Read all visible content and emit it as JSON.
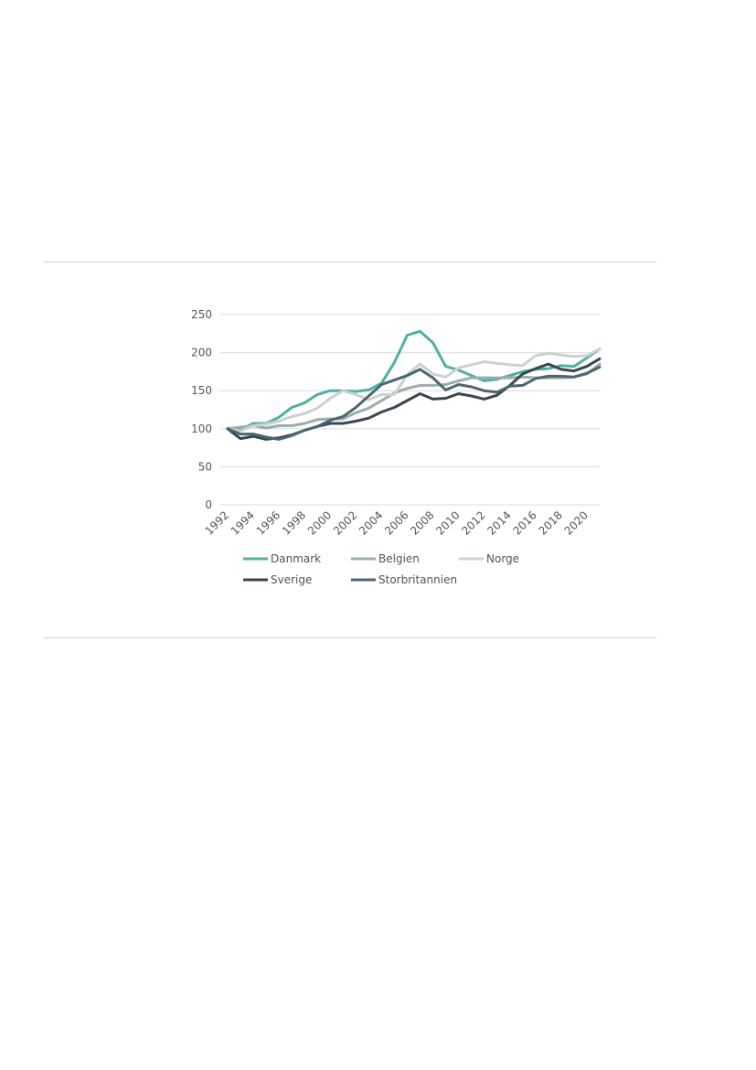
{
  "chart_data": {
    "type": "line",
    "title": "",
    "xlabel": "",
    "ylabel": "",
    "ylim": [
      0,
      250
    ],
    "yticks": [
      0,
      50,
      100,
      150,
      200,
      250
    ],
    "x": [
      1992,
      1993,
      1994,
      1995,
      1996,
      1997,
      1998,
      1999,
      2000,
      2001,
      2002,
      2003,
      2004,
      2005,
      2006,
      2007,
      2008,
      2009,
      2010,
      2011,
      2012,
      2013,
      2014,
      2015,
      2016,
      2017,
      2018,
      2019,
      2020,
      2021
    ],
    "xticks": [
      "1992",
      "1994",
      "1996",
      "1998",
      "2000",
      "2002",
      "2004",
      "2006",
      "2008",
      "2010",
      "2012",
      "2014",
      "2016",
      "2018",
      "2020"
    ],
    "grid": true,
    "legend_placement": "bottom",
    "series": [
      {
        "name": "Danmark",
        "color": "#4fb0a5",
        "values": [
          100,
          99,
          107,
          107,
          115,
          128,
          134,
          145,
          150,
          150,
          149,
          151,
          160,
          187,
          223,
          228,
          213,
          182,
          177,
          170,
          163,
          165,
          170,
          175,
          178,
          179,
          183,
          182,
          193,
          205
        ]
      },
      {
        "name": "Belgien",
        "color": "#9aaeaa",
        "values": [
          100,
          102,
          104,
          101,
          104,
          104,
          107,
          112,
          113,
          113,
          121,
          127,
          137,
          147,
          153,
          157,
          157,
          158,
          163,
          167,
          167,
          167,
          167,
          168,
          167,
          167,
          167,
          168,
          172,
          185
        ]
      },
      {
        "name": "Norge",
        "color": "#c9d2d1",
        "values": [
          100,
          97,
          104,
          106,
          110,
          116,
          120,
          127,
          140,
          150,
          145,
          138,
          145,
          145,
          171,
          185,
          172,
          168,
          180,
          184,
          188,
          186,
          184,
          183,
          196,
          199,
          197,
          195,
          196,
          205
        ]
      },
      {
        "name": "Sverige",
        "color": "#3a4652",
        "values": [
          100,
          87,
          90,
          86,
          88,
          92,
          98,
          103,
          107,
          107,
          110,
          114,
          122,
          128,
          137,
          146,
          139,
          140,
          146,
          143,
          139,
          144,
          157,
          172,
          179,
          185,
          178,
          176,
          182,
          192
        ]
      },
      {
        "name": "Storbritannien",
        "color": "#4d6673",
        "values": [
          100,
          93,
          93,
          89,
          86,
          91,
          98,
          103,
          111,
          116,
          128,
          143,
          158,
          164,
          170,
          178,
          167,
          151,
          158,
          155,
          150,
          148,
          156,
          157,
          166,
          169,
          169,
          168,
          173,
          181
        ]
      }
    ]
  }
}
